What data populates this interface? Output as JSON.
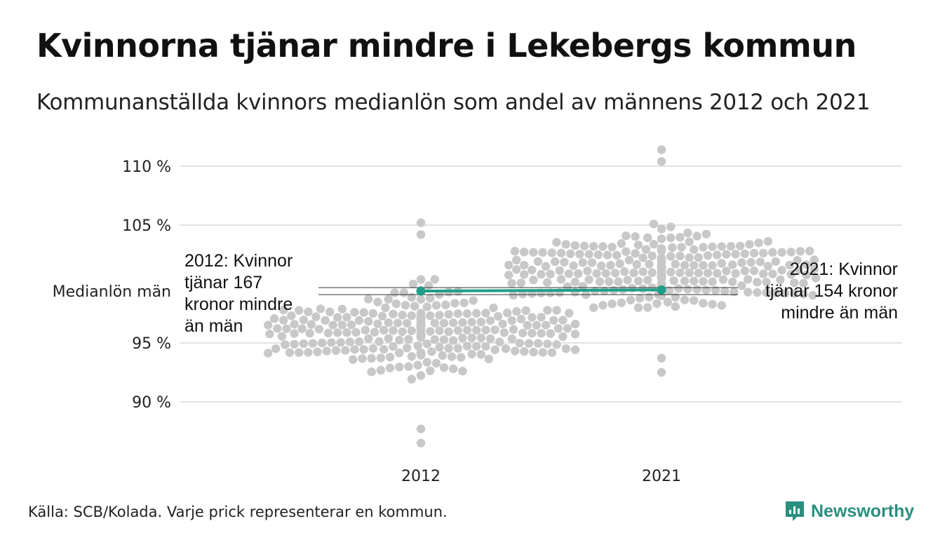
{
  "title": "Kvinnorna tjänar mindre i Lekebergs kommun",
  "subtitle": "Kommunanställda kvinnors medianlön som andel av männens 2012 och 2021",
  "source": "Källa: SCB/Kolada. Varje prick representerar en kommun.",
  "brand": {
    "name": "Newsworthy",
    "icon": "newsworthy-logo-icon",
    "color": "#2a8f7f"
  },
  "chart_data": {
    "type": "scatter",
    "subtype": "beeswarm",
    "categories": [
      "2012",
      "2021"
    ],
    "y_ticks": [
      {
        "value": 110,
        "label": "110 %"
      },
      {
        "value": 105,
        "label": "105 %"
      },
      {
        "value": 95,
        "label": "95 %"
      },
      {
        "value": 90,
        "label": "90 %"
      }
    ],
    "ylim": [
      86,
      111.5
    ],
    "grid": true,
    "reference_line": {
      "value": 99.4,
      "label": "Medianlön män"
    },
    "highlight": {
      "color": "#1f9e89",
      "values": [
        {
          "x": "2012",
          "y": 99.4
        },
        {
          "x": "2021",
          "y": 99.5
        }
      ]
    },
    "annotations": [
      {
        "x": "2012",
        "lines": [
          "2012: Kvinnor",
          "tjänar 167",
          "kronor mindre",
          "än män"
        ]
      },
      {
        "x": "2021",
        "lines": [
          "2021: Kvinnor",
          "tjänar 154 kronor",
          "mindre än män"
        ]
      }
    ],
    "dot_color": "#c8c8c8",
    "distributions": [
      {
        "x": "2012",
        "min": 86.5,
        "max": 105.2,
        "count": 290,
        "stats": {
          "median": 96,
          "approx_spread": 3
        }
      },
      {
        "x": "2021",
        "min": 92.5,
        "max": 111.4,
        "count": 290,
        "stats": {
          "median": 101,
          "approx_spread": 3
        }
      }
    ]
  }
}
